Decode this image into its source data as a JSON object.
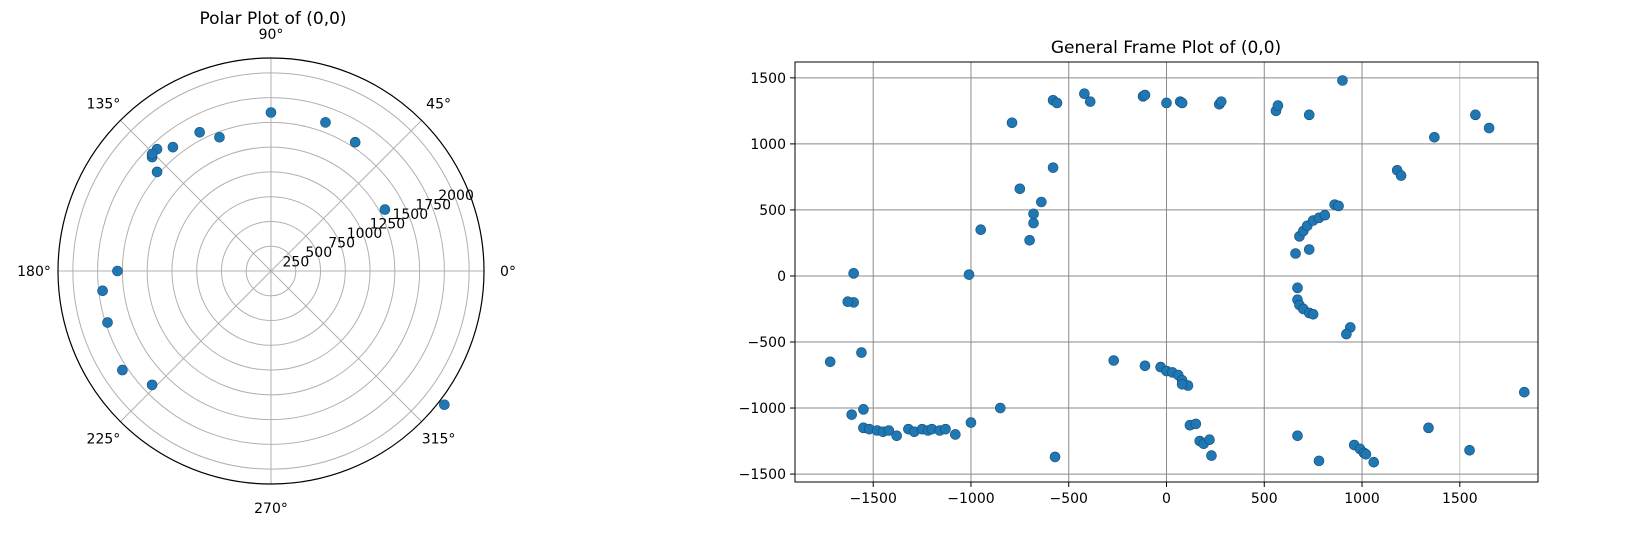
{
  "chart_data": [
    {
      "type": "scatter",
      "projection": "polar",
      "title": "Polar Plot of (0,0)",
      "theta_ticks_deg": [
        0,
        45,
        90,
        135,
        180,
        225,
        270,
        315
      ],
      "theta_tick_labels": [
        "0°",
        "45°",
        "90°",
        "135°",
        "180°",
        "225°",
        "270°",
        "315°"
      ],
      "r_ticks": [
        250,
        500,
        750,
        1000,
        1250,
        1500,
        1750,
        2000
      ],
      "r_tick_labels": [
        "250",
        "500",
        "750",
        "1000",
        "1250",
        "1500",
        "1750",
        "2000"
      ],
      "rlim": [
        0,
        2150
      ],
      "radial_label_angle_deg": 22.5,
      "grid": true,
      "color": "#1f77b4",
      "points": [
        [
          0,
          1600
        ],
        [
          -1150,
          1000
        ],
        [
          -1200,
          -1150
        ],
        [
          1750,
          -1350
        ],
        [
          1150,
          620
        ],
        [
          -1550,
          0
        ],
        [
          -1700,
          -200
        ],
        [
          -1650,
          -520
        ],
        [
          -1500,
          -1000
        ],
        [
          850,
          1300
        ],
        [
          550,
          1500
        ],
        [
          -520,
          1350
        ],
        [
          -720,
          1400
        ],
        [
          -990,
          1250
        ],
        [
          -1150,
          1230
        ],
        [
          -1200,
          1150
        ],
        [
          -1200,
          1180
        ]
      ]
    },
    {
      "type": "scatter",
      "title": "General Frame Plot of (0,0)",
      "xlim": [
        -1900,
        1900
      ],
      "ylim": [
        -1560,
        1620
      ],
      "x_ticks": [
        -1500,
        -1000,
        -500,
        0,
        500,
        1000,
        1500
      ],
      "x_tick_labels": [
        "−1500",
        "−1000",
        "−500",
        "0",
        "500",
        "1000",
        "1500"
      ],
      "y_ticks": [
        -1500,
        -1000,
        -500,
        0,
        500,
        1000,
        1500
      ],
      "y_tick_labels": [
        "−1500",
        "−1000",
        "−500",
        "0",
        "500",
        "1000",
        "1500"
      ],
      "grid": true,
      "color": "#1f77b4",
      "points": [
        [
          -1720,
          -650
        ],
        [
          -1600,
          20
        ],
        [
          -1600,
          -200
        ],
        [
          -1630,
          -195
        ],
        [
          -1560,
          -580
        ],
        [
          -1610,
          -1050
        ],
        [
          -1550,
          -1010
        ],
        [
          -1550,
          -1150
        ],
        [
          -1520,
          -1160
        ],
        [
          -1480,
          -1170
        ],
        [
          -1450,
          -1180
        ],
        [
          -1420,
          -1170
        ],
        [
          -1380,
          -1210
        ],
        [
          -1320,
          -1160
        ],
        [
          -1290,
          -1180
        ],
        [
          -1250,
          -1160
        ],
        [
          -1220,
          -1170
        ],
        [
          -1200,
          -1160
        ],
        [
          -1160,
          -1170
        ],
        [
          -1130,
          -1160
        ],
        [
          -1080,
          -1200
        ],
        [
          -1000,
          -1110
        ],
        [
          -850,
          -1000
        ],
        [
          -570,
          -1370
        ],
        [
          -1010,
          10
        ],
        [
          -950,
          350
        ],
        [
          -750,
          660
        ],
        [
          -700,
          270
        ],
        [
          -680,
          400
        ],
        [
          -680,
          470
        ],
        [
          -640,
          560
        ],
        [
          -580,
          820
        ],
        [
          -790,
          1160
        ],
        [
          -580,
          1330
        ],
        [
          -560,
          1310
        ],
        [
          -420,
          1380
        ],
        [
          -390,
          1320
        ],
        [
          -120,
          1360
        ],
        [
          -110,
          1370
        ],
        [
          0,
          1310
        ],
        [
          70,
          1320
        ],
        [
          80,
          1310
        ],
        [
          270,
          1300
        ],
        [
          280,
          1320
        ],
        [
          560,
          1250
        ],
        [
          570,
          1290
        ],
        [
          730,
          1220
        ],
        [
          900,
          1480
        ],
        [
          1180,
          800
        ],
        [
          1200,
          760
        ],
        [
          1370,
          1050
        ],
        [
          1580,
          1220
        ],
        [
          1650,
          1120
        ],
        [
          660,
          170
        ],
        [
          730,
          200
        ],
        [
          680,
          300
        ],
        [
          700,
          340
        ],
        [
          720,
          380
        ],
        [
          750,
          420
        ],
        [
          780,
          440
        ],
        [
          810,
          460
        ],
        [
          860,
          540
        ],
        [
          880,
          530
        ],
        [
          670,
          -90
        ],
        [
          670,
          -180
        ],
        [
          680,
          -220
        ],
        [
          700,
          -250
        ],
        [
          730,
          -280
        ],
        [
          750,
          -290
        ],
        [
          940,
          -390
        ],
        [
          920,
          -440
        ],
        [
          -270,
          -640
        ],
        [
          -110,
          -680
        ],
        [
          -30,
          -690
        ],
        [
          0,
          -720
        ],
        [
          30,
          -730
        ],
        [
          60,
          -750
        ],
        [
          80,
          -790
        ],
        [
          110,
          -830
        ],
        [
          80,
          -820
        ],
        [
          120,
          -1130
        ],
        [
          150,
          -1120
        ],
        [
          170,
          -1250
        ],
        [
          190,
          -1270
        ],
        [
          220,
          -1240
        ],
        [
          230,
          -1360
        ],
        [
          670,
          -1210
        ],
        [
          780,
          -1400
        ],
        [
          960,
          -1280
        ],
        [
          990,
          -1310
        ],
        [
          1010,
          -1340
        ],
        [
          1020,
          -1350
        ],
        [
          1060,
          -1410
        ],
        [
          1340,
          -1150
        ],
        [
          1550,
          -1320
        ],
        [
          1830,
          -880
        ]
      ]
    }
  ]
}
